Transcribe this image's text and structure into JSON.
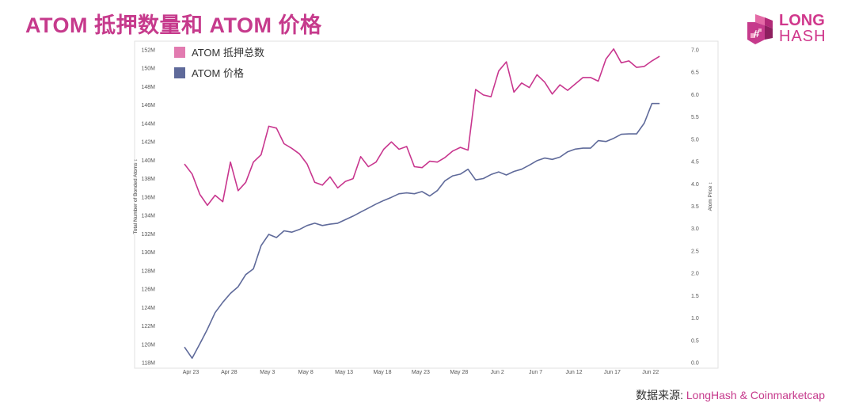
{
  "page": {
    "title": "ATOM 抵押数量和 ATOM 价格",
    "logo_line1": "LONG",
    "logo_line2": "HASH",
    "source_prefix": "数据来源: ",
    "source_brand": "LongHash & Coinmarketcap"
  },
  "colors": {
    "bonded": "#c8368e",
    "price": "#5f6a9a",
    "brand": "#c63a8c"
  },
  "chart_data": {
    "type": "line",
    "title": "ATOM 抵押数量和 ATOM 价格",
    "xlabel": "",
    "ylabel_left": "Total Number of Bonded Atoms",
    "ylabel_right": "Atom Price",
    "ylim_left": [
      118,
      152
    ],
    "ylim_right": [
      0,
      7
    ],
    "y_left_ticks": [
      "118M",
      "120M",
      "122M",
      "124M",
      "126M",
      "128M",
      "130M",
      "132M",
      "134M",
      "136M",
      "138M",
      "140M",
      "142M",
      "144M",
      "146M",
      "148M",
      "150M",
      "152M"
    ],
    "y_right_ticks": [
      "0.0",
      "0.5",
      "1.0",
      "1.5",
      "2.0",
      "2.5",
      "3.0",
      "3.5",
      "4.0",
      "4.5",
      "5.0",
      "5.5",
      "6.0",
      "6.5",
      "7.0"
    ],
    "x_ticks": [
      {
        "label": "Apr 23",
        "day": 0
      },
      {
        "label": "Apr 28",
        "day": 5
      },
      {
        "label": "May 3",
        "day": 10
      },
      {
        "label": "May 8",
        "day": 15
      },
      {
        "label": "May 13",
        "day": 20
      },
      {
        "label": "May 18",
        "day": 25
      },
      {
        "label": "May 23",
        "day": 30
      },
      {
        "label": "May 28",
        "day": 35
      },
      {
        "label": "Jun 2",
        "day": 40
      },
      {
        "label": "Jun 7",
        "day": 45
      },
      {
        "label": "Jun 12",
        "day": 50
      },
      {
        "label": "Jun 17",
        "day": 55
      },
      {
        "label": "Jun 22",
        "day": 60
      }
    ],
    "legend": [
      {
        "name": "ATOM 抵押总数",
        "series": "bonded"
      },
      {
        "name": "ATOM 价格",
        "series": "price"
      }
    ],
    "series": [
      {
        "name": "ATOM 抵押总数",
        "key": "bonded",
        "axis": "left",
        "start_day": 0,
        "values": [
          139.6,
          138.5,
          136.3,
          135.1,
          136.2,
          135.5,
          139.8,
          136.7,
          137.6,
          139.8,
          140.6,
          143.7,
          143.5,
          141.8,
          141.3,
          140.7,
          139.6,
          137.6,
          137.3,
          138.2,
          137.0,
          137.7,
          138.0,
          140.4,
          139.3,
          139.8,
          141.2,
          142.0,
          141.2,
          141.5,
          139.3,
          139.2,
          139.9,
          139.8,
          140.3,
          141.0,
          141.4,
          141.1,
          147.7,
          147.1,
          146.9,
          149.7,
          150.7,
          147.4,
          148.4,
          147.9,
          149.3,
          148.5,
          147.2,
          148.2,
          147.6,
          148.3,
          149.0,
          149.0,
          148.6,
          151.0,
          152.1,
          150.6,
          150.8,
          150.1,
          150.2,
          150.8,
          151.3
        ]
      },
      {
        "name": "ATOM 价格",
        "key": "price",
        "axis": "right",
        "start_day": 0,
        "values": [
          0.35,
          0.1,
          0.42,
          0.75,
          1.12,
          1.35,
          1.55,
          1.7,
          1.97,
          2.1,
          2.62,
          2.87,
          2.8,
          2.95,
          2.92,
          2.98,
          3.07,
          3.12,
          3.07,
          3.1,
          3.12,
          3.2,
          3.28,
          3.37,
          3.46,
          3.55,
          3.63,
          3.7,
          3.78,
          3.8,
          3.78,
          3.83,
          3.73,
          3.85,
          4.07,
          4.18,
          4.22,
          4.33,
          4.09,
          4.12,
          4.21,
          4.27,
          4.2,
          4.28,
          4.33,
          4.42,
          4.52,
          4.58,
          4.55,
          4.6,
          4.72,
          4.78,
          4.8,
          4.8,
          4.97,
          4.95,
          5.02,
          5.11,
          5.12,
          5.12,
          5.36,
          5.8,
          5.8
        ]
      }
    ]
  }
}
